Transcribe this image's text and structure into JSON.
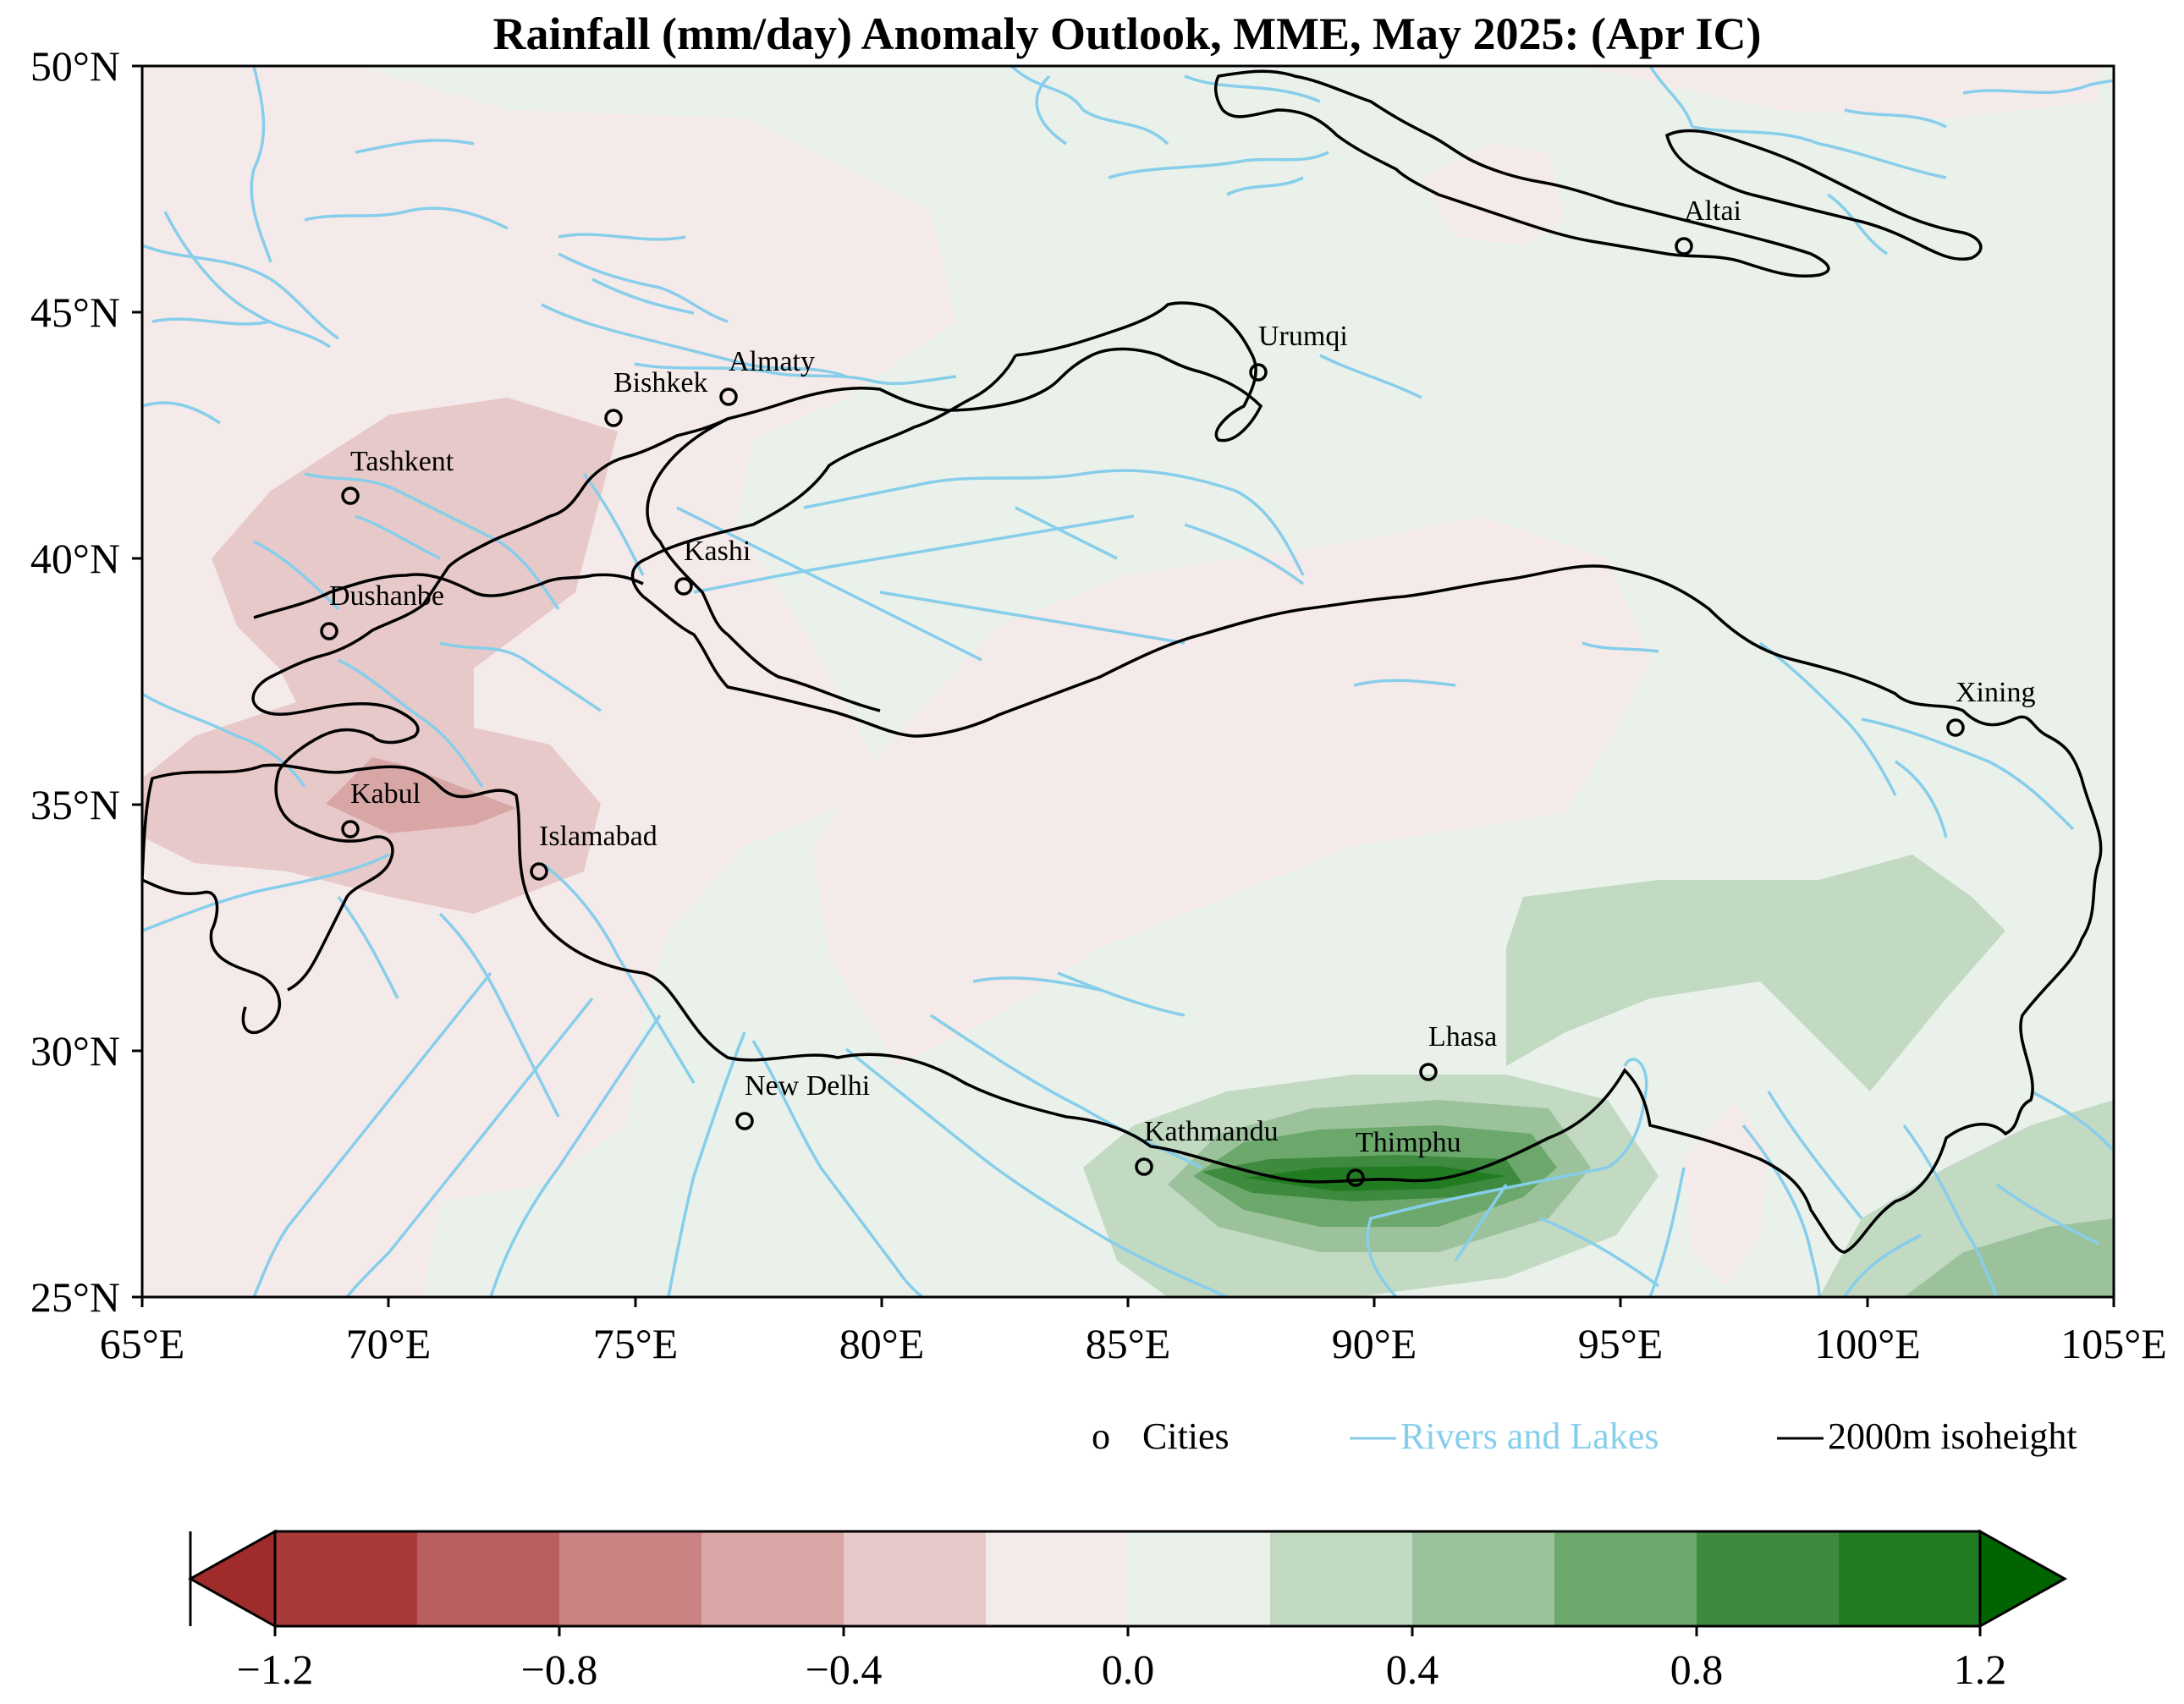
{
  "title": "Rainfall (mm/day) Anomaly Outlook, MME, May  2025:  (Apr IC)",
  "map": {
    "lon_range": [
      65,
      105
    ],
    "lat_range": [
      25,
      50
    ],
    "x_ticks": [
      "65°E",
      "70°E",
      "75°E",
      "80°E",
      "85°E",
      "90°E",
      "95°E",
      "100°E",
      "105°E"
    ],
    "y_ticks": [
      "25°N",
      "30°N",
      "35°N",
      "40°N",
      "45°N",
      "50°N"
    ]
  },
  "cities": [
    {
      "name": "Altai",
      "lon": 96.3,
      "lat": 46.4
    },
    {
      "name": "Urumqi",
      "lon": 87.6,
      "lat": 43.8
    },
    {
      "name": "Almaty",
      "lon": 76.9,
      "lat": 43.3
    },
    {
      "name": "Bishkek",
      "lon": 74.6,
      "lat": 42.9
    },
    {
      "name": "Tashkent",
      "lon": 69.2,
      "lat": 41.3
    },
    {
      "name": "Kashi",
      "lon": 76.0,
      "lat": 39.5
    },
    {
      "name": "Dushanbe",
      "lon": 68.8,
      "lat": 38.6
    },
    {
      "name": "Xining",
      "lon": 101.8,
      "lat": 36.6
    },
    {
      "name": "Kabul",
      "lon": 69.2,
      "lat": 34.5
    },
    {
      "name": "Islamabad",
      "lon": 73.1,
      "lat": 33.7
    },
    {
      "name": "Lhasa",
      "lon": 91.1,
      "lat": 29.6
    },
    {
      "name": "New Delhi",
      "lon": 77.2,
      "lat": 28.6
    },
    {
      "name": "Kathmandu",
      "lon": 85.3,
      "lat": 27.7
    },
    {
      "name": "Thimphu",
      "lon": 89.6,
      "lat": 27.5
    }
  ],
  "legend": {
    "cities": "Cities",
    "cities_marker": "o",
    "rivers": "Rivers and Lakes",
    "isoheight": "2000m isoheight",
    "isoheight_marker": "—",
    "rivers_color": "#87ceeb"
  },
  "colorbar": {
    "ticks": [
      "−1.2",
      "−0.8",
      "−0.4",
      "0.0",
      "0.4",
      "0.8",
      "1.2"
    ],
    "colors": [
      "#a83a3a",
      "#ba5f5f",
      "#ca8282",
      "#d9a6a6",
      "#e8c9c9",
      "#f5eaea",
      "#eaf1ea",
      "#c2d9c2",
      "#9cc29c",
      "#6ca86c",
      "#3e8a3e",
      "#217c21"
    ],
    "extend_low": "#a02b2b",
    "extend_high": "#006400"
  },
  "chart_data": {
    "type": "heatmap",
    "variable": "Rainfall (mm/day) Anomaly",
    "levels": [
      -1.2,
      -1.0,
      -0.8,
      -0.6,
      -0.4,
      -0.2,
      0.0,
      0.2,
      0.4,
      0.6,
      0.8,
      1.0,
      1.2
    ],
    "regions": [
      {
        "lon": [
          66,
          74
        ],
        "lat": [
          38,
          43
        ],
        "value": -0.3
      },
      {
        "lon": [
          65,
          74
        ],
        "lat": [
          33,
          37
        ],
        "value": -0.3
      },
      {
        "lon": [
          69,
          72
        ],
        "lat": [
          34.5,
          35.5
        ],
        "value": -0.5
      },
      {
        "lon": [
          85,
          94
        ],
        "lat": [
          26,
          29.5
        ],
        "value": 0.3
      },
      {
        "lon": [
          87,
          93
        ],
        "lat": [
          27,
          28.5
        ],
        "value": 0.7
      },
      {
        "lon": [
          89,
          92
        ],
        "lat": [
          27.3,
          27.9
        ],
        "value": 1.1
      },
      {
        "lon": [
          92,
          101
        ],
        "lat": [
          29.5,
          33
        ],
        "value": 0.3
      },
      {
        "lon": [
          100,
          105
        ],
        "lat": [
          25,
          28
        ],
        "value": 0.4
      },
      {
        "lon": [
          80,
          90
        ],
        "lat": [
          30,
          40
        ],
        "value": -0.1
      },
      {
        "lon": [
          85,
          105
        ],
        "lat": [
          40,
          50
        ],
        "value": 0.1
      }
    ]
  }
}
